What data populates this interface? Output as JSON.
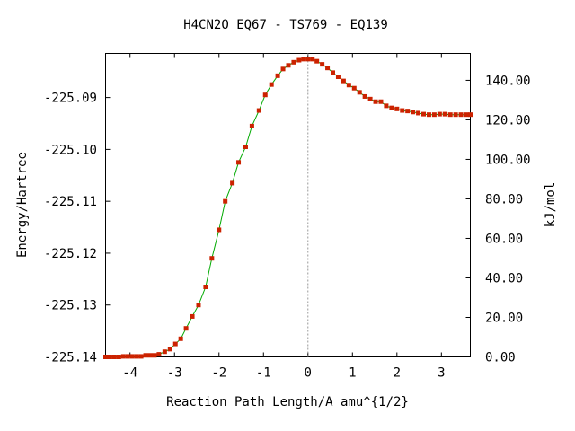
{
  "chart_data": {
    "type": "line",
    "title": "H4CN2O   EQ67 - TS769 - EQ139",
    "xlabel": "Reaction Path Length/A amu^{1/2}",
    "ylabel": "Energy/Hartree",
    "y2label": "kJ/mol",
    "xlim": [
      -4.55,
      3.65
    ],
    "ylim": [
      -225.14,
      -225.0815
    ],
    "y2lim": [
      0,
      153.6
    ],
    "xticks": [
      -4,
      -3,
      -2,
      -1,
      0,
      1,
      2,
      3
    ],
    "xtick_labels": [
      "-4",
      "-3",
      "-2",
      "-1",
      "0",
      "1",
      "2",
      "3"
    ],
    "yticks": [
      -225.09,
      -225.1,
      -225.11,
      -225.12,
      -225.13,
      -225.14
    ],
    "ytick_labels": [
      "-225.09",
      "-225.10",
      "-225.11",
      "-225.12",
      "-225.13",
      "-225.14"
    ],
    "y2ticks": [
      140,
      120,
      100,
      80,
      60,
      40,
      20,
      0
    ],
    "y2tick_labels": [
      "140.00",
      "120.00",
      "100.00",
      "80.00",
      "60.00",
      "40.00",
      "20.00",
      "0.00"
    ],
    "ts_marker_x": 0,
    "grid": false,
    "line_color": "#00aa00",
    "marker_color": "#cc2200",
    "series": [
      {
        "x": [
          -4.55,
          -4.45,
          -4.35,
          -4.25,
          -4.15,
          -4.05,
          -3.95,
          -3.85,
          -3.75,
          -3.65,
          -3.55,
          -3.45,
          -3.35,
          -3.22,
          -3.1,
          -2.98,
          -2.86,
          -2.74,
          -2.6,
          -2.46,
          -2.3,
          -2.16,
          -2.0,
          -1.86,
          -1.7,
          -1.56,
          -1.4,
          -1.26,
          -1.1,
          -0.96,
          -0.82,
          -0.68,
          -0.56,
          -0.44,
          -0.32,
          -0.2,
          -0.1,
          0.0,
          0.1,
          0.2,
          0.32,
          0.44,
          0.56,
          0.68,
          0.8,
          0.92,
          1.04,
          1.16,
          1.28,
          1.4,
          1.52,
          1.64,
          1.76,
          1.88,
          2.0,
          2.12,
          2.24,
          2.36,
          2.48,
          2.6,
          2.72,
          2.84,
          2.96,
          3.08,
          3.2,
          3.32,
          3.44,
          3.56,
          3.65
        ],
        "y": [
          -225.14,
          -225.14,
          -225.14,
          -225.14,
          -225.1399,
          -225.1399,
          -225.1399,
          -225.1399,
          -225.1399,
          -225.1397,
          -225.1397,
          -225.1397,
          -225.1395,
          -225.139,
          -225.1385,
          -225.1375,
          -225.1365,
          -225.1345,
          -225.1322,
          -225.13,
          -225.1265,
          -225.121,
          -225.1155,
          -225.11,
          -225.1065,
          -225.1025,
          -225.0995,
          -225.0955,
          -225.0925,
          -225.0895,
          -225.0875,
          -225.0858,
          -225.0845,
          -225.0838,
          -225.0832,
          -225.0828,
          -225.0826,
          -225.0826,
          -225.0826,
          -225.083,
          -225.0836,
          -225.0843,
          -225.0852,
          -225.086,
          -225.0868,
          -225.0876,
          -225.0882,
          -225.089,
          -225.0898,
          -225.0903,
          -225.0908,
          -225.0908,
          -225.0916,
          -225.092,
          -225.0922,
          -225.0925,
          -225.0926,
          -225.0928,
          -225.093,
          -225.0932,
          -225.0933,
          -225.0933,
          -225.0932,
          -225.0932,
          -225.0933,
          -225.0933,
          -225.0933,
          -225.0933,
          -225.0933
        ]
      }
    ]
  }
}
